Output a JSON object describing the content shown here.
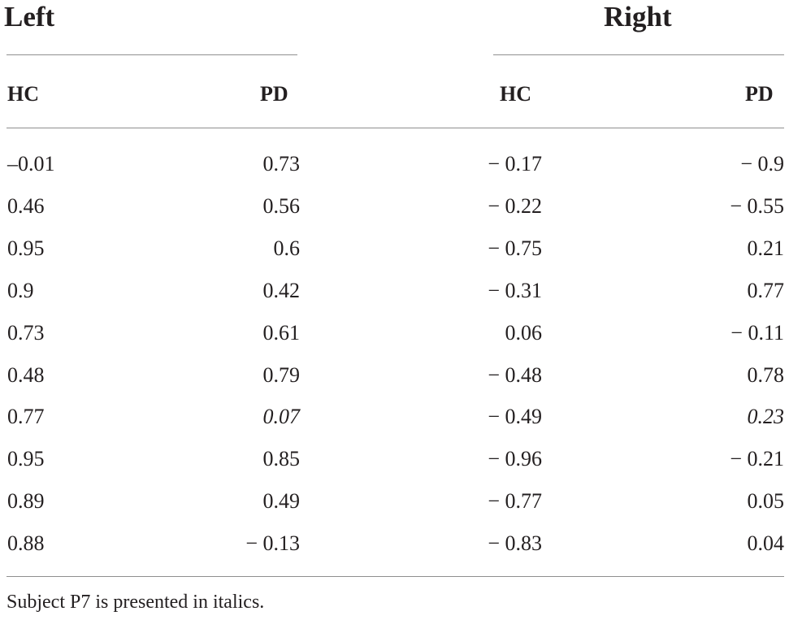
{
  "table": {
    "groups": [
      "Left",
      "Right"
    ],
    "columns": [
      "HC",
      "PD",
      "HC",
      "PD"
    ],
    "rows": [
      {
        "cells": [
          "–0.01",
          "0.73",
          "− 0.17",
          "− 0.9"
        ],
        "italic": false
      },
      {
        "cells": [
          "0.46",
          "0.56",
          "− 0.22",
          "− 0.55"
        ],
        "italic": false
      },
      {
        "cells": [
          "0.95",
          "0.6",
          "− 0.75",
          "0.21"
        ],
        "italic": false
      },
      {
        "cells": [
          "0.9",
          "0.42",
          "− 0.31",
          "0.77"
        ],
        "italic": false
      },
      {
        "cells": [
          "0.73",
          "0.61",
          "0.06",
          "− 0.11"
        ],
        "italic": false
      },
      {
        "cells": [
          "0.48",
          "0.79",
          "− 0.48",
          "0.78"
        ],
        "italic": false
      },
      {
        "cells": [
          "0.77",
          "0.07",
          "− 0.49",
          "0.23"
        ],
        "italic": true
      },
      {
        "cells": [
          "0.95",
          "0.85",
          "− 0.96",
          "− 0.21"
        ],
        "italic": false
      },
      {
        "cells": [
          "0.89",
          "0.49",
          "− 0.77",
          "0.05"
        ],
        "italic": false
      },
      {
        "cells": [
          "0.88",
          "− 0.13",
          "− 0.83",
          "0.04"
        ],
        "italic": false
      }
    ],
    "footnote": "Subject P7 is presented in italics."
  },
  "colors": {
    "text": "#231f20",
    "rule": "#8f8f8f",
    "background": "#ffffff"
  }
}
